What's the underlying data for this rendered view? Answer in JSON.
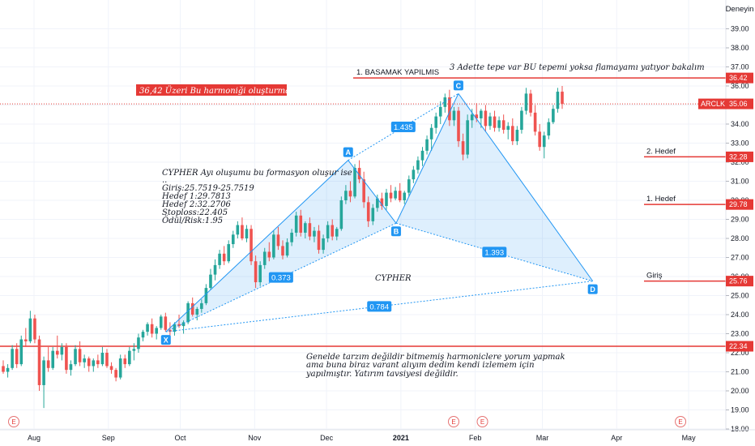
{
  "header": {
    "label": "Deneyin"
  },
  "ticker": {
    "symbol": "ARCLK",
    "price": "35.06"
  },
  "chart_data": {
    "type": "candlestick",
    "y_axis": {
      "range": [
        18.0,
        39.5
      ],
      "ticks": [
        "39.00",
        "38.00",
        "37.00",
        "36.00",
        "35.00",
        "34.00",
        "33.00",
        "32.00",
        "31.00",
        "30.00",
        "29.00",
        "28.00",
        "27.00",
        "26.00",
        "25.00",
        "24.00",
        "23.00",
        "22.00",
        "21.00",
        "20.00",
        "19.00",
        "18.00"
      ]
    },
    "x_axis": {
      "ticks": [
        "Aug",
        "Sep",
        "Oct",
        "Nov",
        "Dec",
        "2021",
        "Feb",
        "Mar",
        "Apr",
        "May"
      ],
      "bold_ticks": [
        "2021"
      ]
    },
    "colors": {
      "up": "#26a69a",
      "down": "#ef5350",
      "line": "#e53935",
      "pattern": "#2196f3",
      "tag": "#e53935"
    },
    "horizontal_levels": [
      {
        "value": 36.42,
        "label": "36.42",
        "text": "1. BASAMAK YAPILMIS"
      },
      {
        "value": 32.28,
        "label": "32.28",
        "text": "2. Hedef"
      },
      {
        "value": 29.78,
        "label": "29.78",
        "text": "1. Hedef"
      },
      {
        "value": 25.76,
        "label": "25.76",
        "text": "Giriş"
      },
      {
        "value": 22.34,
        "label": "22.34",
        "text": ""
      }
    ],
    "pattern": {
      "name": "CYPHER",
      "points": [
        {
          "label": "X",
          "date": "2020-09-25",
          "value": 23.1
        },
        {
          "label": "A",
          "date": "2020-12-10",
          "value": 32.1
        },
        {
          "label": "B",
          "date": "2020-12-30",
          "value": 28.8
        },
        {
          "label": "C",
          "date": "2021-01-25",
          "value": 35.6
        },
        {
          "label": "D",
          "date": "2021-03-22",
          "value": 25.76
        }
      ],
      "ratios": [
        "0.373",
        "1.435",
        "1.393",
        "0.784"
      ]
    },
    "earnings_markers": [
      "E",
      "E",
      "E",
      "E"
    ],
    "candles": [
      [
        21.3,
        21.6,
        20.9,
        21.0
      ],
      [
        21.0,
        21.4,
        20.7,
        21.2
      ],
      [
        21.2,
        22.4,
        21.1,
        22.2
      ],
      [
        22.2,
        22.5,
        21.2,
        21.4
      ],
      [
        21.4,
        22.9,
        21.3,
        22.7
      ],
      [
        22.7,
        23.3,
        22.3,
        22.6
      ],
      [
        22.6,
        24.2,
        22.5,
        23.8
      ],
      [
        23.8,
        24.0,
        22.5,
        22.7
      ],
      [
        22.7,
        22.9,
        20.0,
        20.3
      ],
      [
        20.3,
        21.8,
        19.1,
        21.6
      ],
      [
        21.6,
        22.3,
        21.0,
        21.2
      ],
      [
        21.2,
        22.3,
        21.1,
        22.1
      ],
      [
        22.1,
        22.9,
        21.7,
        21.9
      ],
      [
        21.9,
        22.5,
        21.6,
        22.3
      ],
      [
        22.3,
        22.5,
        20.9,
        21.1
      ],
      [
        21.1,
        21.6,
        20.8,
        21.4
      ],
      [
        21.4,
        22.4,
        21.3,
        22.2
      ],
      [
        22.2,
        22.6,
        21.3,
        21.5
      ],
      [
        21.5,
        21.9,
        21.2,
        21.7
      ],
      [
        21.7,
        21.8,
        21.0,
        21.3
      ],
      [
        21.3,
        21.7,
        21.0,
        21.6
      ],
      [
        21.6,
        21.9,
        21.2,
        21.4
      ],
      [
        21.4,
        22.3,
        21.3,
        22.0
      ],
      [
        22.0,
        22.2,
        21.2,
        21.3
      ],
      [
        21.3,
        21.5,
        20.9,
        21.1
      ],
      [
        21.1,
        21.2,
        20.5,
        20.7
      ],
      [
        20.7,
        21.9,
        20.6,
        21.7
      ],
      [
        21.7,
        21.9,
        21.2,
        21.4
      ],
      [
        21.4,
        22.3,
        21.3,
        22.1
      ],
      [
        22.1,
        22.5,
        21.6,
        22.2
      ],
      [
        22.2,
        23.0,
        22.0,
        22.8
      ],
      [
        22.8,
        23.2,
        22.6,
        23.1
      ],
      [
        23.1,
        23.6,
        22.9,
        23.5
      ],
      [
        23.5,
        23.8,
        22.8,
        23.0
      ],
      [
        23.0,
        23.4,
        22.7,
        23.3
      ],
      [
        23.3,
        24.0,
        23.2,
        23.9
      ],
      [
        23.9,
        24.1,
        23.1,
        23.2
      ],
      [
        23.2,
        23.6,
        22.9,
        23.1
      ],
      [
        23.1,
        23.6,
        22.9,
        23.5
      ],
      [
        23.5,
        24.0,
        23.3,
        23.4
      ],
      [
        23.4,
        23.7,
        23.0,
        23.6
      ],
      [
        23.6,
        24.7,
        23.5,
        24.6
      ],
      [
        24.6,
        24.9,
        23.9,
        24.0
      ],
      [
        24.0,
        24.4,
        23.7,
        24.3
      ],
      [
        24.3,
        24.8,
        24.1,
        24.6
      ],
      [
        24.6,
        25.6,
        24.5,
        25.4
      ],
      [
        25.4,
        26.4,
        25.3,
        26.1
      ],
      [
        26.1,
        26.9,
        25.8,
        26.6
      ],
      [
        26.6,
        27.4,
        26.4,
        27.2
      ],
      [
        27.2,
        27.6,
        26.6,
        26.8
      ],
      [
        26.8,
        27.9,
        26.7,
        27.7
      ],
      [
        27.7,
        28.4,
        27.5,
        28.2
      ],
      [
        28.2,
        28.9,
        28.0,
        28.7
      ],
      [
        28.7,
        29.1,
        27.9,
        28.0
      ],
      [
        28.0,
        28.7,
        27.8,
        28.5
      ],
      [
        28.5,
        28.7,
        26.6,
        26.8
      ],
      [
        26.8,
        27.1,
        25.4,
        25.7
      ],
      [
        25.7,
        26.8,
        25.5,
        26.6
      ],
      [
        26.6,
        27.5,
        26.4,
        27.3
      ],
      [
        27.3,
        27.8,
        26.8,
        27.0
      ],
      [
        27.0,
        28.4,
        26.9,
        28.2
      ],
      [
        28.2,
        28.6,
        27.4,
        27.6
      ],
      [
        27.6,
        27.9,
        26.9,
        27.1
      ],
      [
        27.1,
        28.0,
        27.0,
        27.8
      ],
      [
        27.8,
        28.5,
        27.6,
        28.3
      ],
      [
        28.3,
        29.4,
        28.1,
        29.2
      ],
      [
        29.2,
        29.5,
        28.1,
        28.3
      ],
      [
        28.3,
        28.9,
        28.0,
        28.8
      ],
      [
        28.8,
        29.1,
        27.9,
        28.1
      ],
      [
        28.1,
        28.6,
        27.8,
        28.4
      ],
      [
        28.4,
        28.7,
        27.2,
        27.4
      ],
      [
        27.4,
        28.2,
        27.2,
        28.0
      ],
      [
        28.0,
        28.9,
        27.8,
        28.7
      ],
      [
        28.7,
        29.0,
        27.9,
        28.1
      ],
      [
        28.1,
        28.6,
        27.9,
        28.5
      ],
      [
        28.5,
        30.2,
        28.4,
        30.0
      ],
      [
        30.0,
        30.8,
        29.8,
        30.5
      ],
      [
        30.5,
        31.0,
        29.9,
        30.2
      ],
      [
        30.2,
        31.9,
        30.1,
        31.7
      ],
      [
        31.7,
        32.1,
        30.9,
        31.1
      ],
      [
        31.1,
        31.5,
        29.6,
        29.9
      ],
      [
        29.9,
        30.2,
        28.6,
        28.9
      ],
      [
        28.9,
        29.8,
        28.7,
        29.6
      ],
      [
        29.6,
        30.3,
        29.4,
        30.1
      ],
      [
        30.1,
        30.4,
        29.5,
        29.7
      ],
      [
        29.7,
        30.6,
        29.5,
        30.4
      ],
      [
        30.4,
        30.8,
        29.9,
        30.1
      ],
      [
        30.1,
        30.7,
        30.0,
        30.5
      ],
      [
        30.5,
        30.9,
        29.9,
        30.0
      ],
      [
        30.0,
        30.5,
        29.8,
        30.4
      ],
      [
        30.4,
        31.3,
        30.2,
        31.1
      ],
      [
        31.1,
        31.8,
        30.9,
        31.6
      ],
      [
        31.6,
        32.3,
        31.4,
        32.1
      ],
      [
        32.1,
        32.8,
        31.8,
        32.6
      ],
      [
        32.6,
        33.4,
        32.4,
        33.2
      ],
      [
        33.2,
        34.0,
        32.6,
        33.8
      ],
      [
        33.8,
        34.6,
        33.5,
        34.4
      ],
      [
        34.4,
        35.2,
        34.0,
        34.9
      ],
      [
        34.9,
        35.6,
        34.6,
        35.4
      ],
      [
        35.4,
        35.8,
        33.9,
        34.2
      ],
      [
        34.2,
        34.9,
        33.9,
        34.7
      ],
      [
        34.7,
        34.9,
        32.8,
        33.1
      ],
      [
        33.1,
        33.5,
        32.1,
        32.4
      ],
      [
        32.4,
        34.5,
        32.2,
        34.2
      ],
      [
        34.2,
        34.8,
        33.8,
        34.5
      ],
      [
        34.5,
        35.1,
        34.1,
        34.3
      ],
      [
        34.3,
        34.8,
        33.8,
        34.7
      ],
      [
        34.7,
        35.0,
        33.6,
        33.9
      ],
      [
        33.9,
        34.6,
        33.7,
        34.4
      ],
      [
        34.4,
        34.7,
        33.6,
        33.8
      ],
      [
        33.8,
        34.4,
        33.6,
        34.2
      ],
      [
        34.2,
        34.5,
        33.5,
        33.7
      ],
      [
        33.7,
        34.1,
        33.2,
        33.9
      ],
      [
        33.9,
        34.3,
        32.9,
        33.1
      ],
      [
        33.1,
        33.9,
        32.9,
        33.7
      ],
      [
        33.7,
        34.9,
        33.5,
        34.7
      ],
      [
        34.7,
        35.9,
        34.5,
        35.6
      ],
      [
        35.6,
        35.8,
        34.4,
        34.6
      ],
      [
        34.6,
        35.0,
        33.4,
        33.6
      ],
      [
        33.6,
        34.0,
        32.6,
        32.8
      ],
      [
        32.8,
        33.6,
        32.2,
        33.4
      ],
      [
        33.4,
        34.3,
        33.2,
        34.1
      ],
      [
        34.1,
        35.0,
        34.0,
        34.8
      ],
      [
        34.8,
        35.9,
        34.6,
        35.7
      ],
      [
        35.7,
        36.0,
        34.8,
        35.06
      ]
    ]
  },
  "annotations": {
    "harmonic_note": "36,42 Üzeri Bu harmoniği oluşturmaz.",
    "flag_note": "3 Adette tepe var BU tepemi yoksa flamayamı yatıyor bakalım",
    "cypher_title": "CYPHER Ayı oluşumu bu formasyon oluşur ise",
    "cypher_dots": "..",
    "entry": "Giriş:25.7519-25.7519",
    "target1": "Hedef 1:29.7813",
    "target2": "Hedef 2:32.2706",
    "stoploss": "Stoploss:22.405",
    "reward_risk": "Ödül/Risk:1.95",
    "disclaimer1": "Genelde tarzım değildir bitmemiş harmoniclere yorum yapmak",
    "disclaimer2": "ama buna biraz varant alıyım dedim kendi izlemem için",
    "disclaimer3": "yapılmıştır. Yatırım tavsiyesi değildir."
  }
}
